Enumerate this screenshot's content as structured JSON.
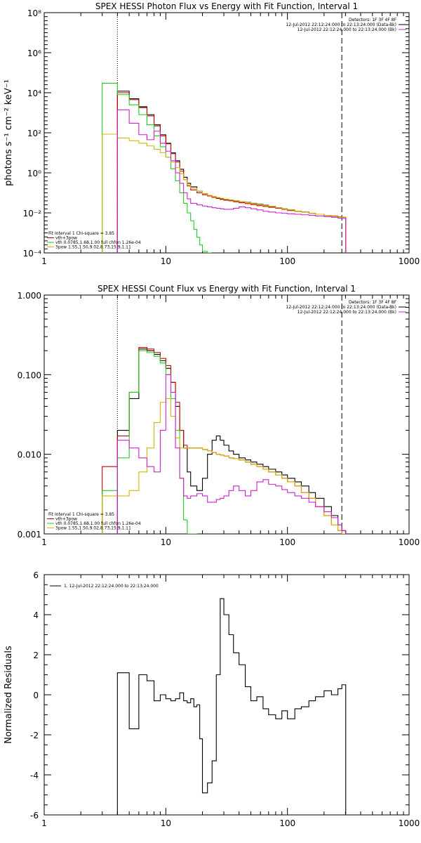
{
  "colors": {
    "black": "#000000",
    "red": "#cc0000",
    "green": "#22cc22",
    "yellow": "#d4b800",
    "magenta": "#cc22cc"
  },
  "chart_data": [
    {
      "type": "line",
      "title": "SPEX HESSI Photon Flux vs Energy with Fit Function, Interval 1",
      "xlabel": "",
      "ylabel": "photons s⁻¹ cm⁻² keV⁻¹",
      "xlim": [
        1,
        1000
      ],
      "x_scale": "log",
      "ylim": [
        0.0001,
        100000000
      ],
      "y_scale": "log",
      "x_ticks": [
        "1",
        "10",
        "100",
        "1000"
      ],
      "y_ticks": [
        "10⁻⁴",
        "10⁻²",
        "10⁰",
        "10²",
        "10⁴",
        "10⁶",
        "10⁸"
      ],
      "vlines": [
        {
          "x": 4,
          "style": "dotted"
        },
        {
          "x": 280,
          "style": "dashed"
        }
      ],
      "legend_topright": [
        "Detectors: 1F 3F 4F 8F",
        "12-Jul-2012 22:12:24.000 to 22:13:24.000 (Data-Bk)",
        "12-Jul-2012 22:12:24.000 to 22:13:24.000 (Bk)"
      ],
      "legend_topright_colors": [
        "",
        "black",
        "magenta"
      ],
      "legend_bottomleft": [
        "Fit Interval 1   Chi-square = 3.85",
        "vth+3pow",
        "vth 0.0785,1.68,1.00  full chfon 1.26e-04",
        "3pow 1.55,1.50,9.02,8.73,15.9,1.11"
      ],
      "legend_bottomleft_colors": [
        "",
        "red",
        "green",
        "yellow"
      ],
      "series": [
        {
          "color": "black",
          "x": [
            4,
            5,
            6,
            7,
            8,
            9,
            10,
            11,
            12,
            13,
            14,
            15,
            16,
            18,
            20,
            22,
            24,
            26,
            28,
            30,
            33,
            36,
            40,
            45,
            50,
            56,
            63,
            70,
            80,
            90,
            100,
            115,
            130,
            150,
            170,
            200,
            230,
            260,
            280
          ],
          "y": [
            12000,
            5000,
            2000,
            800,
            250,
            80,
            30,
            10,
            4,
            1.5,
            0.6,
            0.3,
            0.2,
            0.12,
            0.09,
            0.07,
            0.06,
            0.055,
            0.05,
            0.047,
            0.044,
            0.04,
            0.036,
            0.033,
            0.03,
            0.027,
            0.024,
            0.021,
            0.018,
            0.016,
            0.014,
            0.012,
            0.011,
            0.0095,
            0.0085,
            0.0075,
            0.007,
            0.0063,
            0.006
          ]
        },
        {
          "color": "red",
          "x": [
            4,
            5,
            6,
            7,
            8,
            9,
            10,
            11,
            12,
            13,
            14,
            15,
            16,
            18,
            20,
            22,
            24,
            26,
            28,
            30,
            33,
            36,
            40,
            45,
            50,
            56,
            63,
            70,
            80,
            90,
            100,
            115,
            130,
            150,
            170,
            200,
            230,
            260,
            280
          ],
          "y": [
            10000,
            4500,
            1800,
            700,
            220,
            70,
            28,
            9,
            3.5,
            1.2,
            0.45,
            0.22,
            0.14,
            0.1,
            0.08,
            0.07,
            0.06,
            0.052,
            0.047,
            0.043,
            0.04,
            0.036,
            0.032,
            0.029,
            0.026,
            0.023,
            0.021,
            0.019,
            0.017,
            0.015,
            0.013,
            0.012,
            0.011,
            0.0095,
            0.0085,
            0.0075,
            0.0068,
            0.0062,
            0.006
          ]
        },
        {
          "color": "green",
          "x": [
            3,
            4,
            5,
            6,
            7,
            8,
            9,
            10,
            11,
            12,
            13,
            14,
            15,
            16,
            17,
            18,
            19,
            20,
            22
          ],
          "y": [
            30000,
            8000,
            2500,
            800,
            250,
            70,
            20,
            6,
            1.6,
            0.4,
            0.1,
            0.03,
            0.01,
            0.004,
            0.0015,
            0.0006,
            0.00025,
            0.00012,
            0.0001
          ]
        },
        {
          "color": "yellow",
          "x": [
            3,
            4,
            5,
            6,
            7,
            8,
            9,
            10,
            11,
            12,
            13,
            14,
            15,
            16,
            18,
            20,
            22,
            24,
            26,
            28,
            30,
            33,
            36,
            40,
            45,
            50,
            56,
            63,
            70,
            80,
            90,
            100,
            115,
            130,
            150,
            170,
            200,
            230,
            260,
            280
          ],
          "y": [
            85,
            55,
            40,
            30,
            22,
            15,
            10,
            6,
            3.5,
            1.8,
            0.9,
            0.45,
            0.25,
            0.17,
            0.12,
            0.09,
            0.075,
            0.065,
            0.058,
            0.053,
            0.048,
            0.044,
            0.04,
            0.036,
            0.032,
            0.029,
            0.026,
            0.023,
            0.021,
            0.018,
            0.016,
            0.014,
            0.012,
            0.011,
            0.0095,
            0.0085,
            0.0075,
            0.0068,
            0.0062,
            0.006
          ]
        },
        {
          "color": "magenta",
          "x": [
            4,
            5,
            6,
            7,
            8,
            9,
            10,
            11,
            12,
            13,
            14,
            15,
            16,
            18,
            20,
            22,
            24,
            26,
            28,
            30,
            33,
            36,
            40,
            45,
            50,
            56,
            63,
            70,
            80,
            90,
            100,
            115,
            130,
            150,
            170,
            200,
            230,
            260,
            280
          ],
          "y": [
            1400,
            300,
            80,
            45,
            120,
            30,
            12,
            4,
            1,
            0.3,
            0.1,
            0.05,
            0.03,
            0.025,
            0.022,
            0.02,
            0.018,
            0.017,
            0.016,
            0.015,
            0.015,
            0.017,
            0.02,
            0.018,
            0.016,
            0.014,
            0.012,
            0.011,
            0.01,
            0.0095,
            0.009,
            0.0085,
            0.008,
            0.0075,
            0.007,
            0.0065,
            0.006,
            0.0055,
            0.0053
          ]
        }
      ]
    },
    {
      "type": "line",
      "title": "SPEX HESSI Count Flux vs Energy with Fit Function, Interval 1",
      "xlabel": "",
      "ylabel": "",
      "xlim": [
        1,
        1000
      ],
      "x_scale": "log",
      "ylim": [
        0.001,
        1
      ],
      "y_scale": "log",
      "x_ticks": [
        "1",
        "10",
        "100",
        "1000"
      ],
      "y_ticks": [
        "0.001",
        "0.010",
        "0.100",
        "1.000"
      ],
      "vlines": [
        {
          "x": 4,
          "style": "dotted"
        },
        {
          "x": 280,
          "style": "dashed"
        }
      ],
      "legend_topright": [
        "Detectors: 1F 3F 4F 8F",
        "12-Jul-2012 22:12:24.000 to 22:13:24.000 (Data-Bk)",
        "12-Jul-2012 22:12:24.000 to 22:13:24.000 (Bk)"
      ],
      "legend_topright_colors": [
        "",
        "black",
        "magenta"
      ],
      "legend_bottomleft": [
        "Fit Interval 1   Chi-square = 3.85",
        "vth+3pow",
        "vth 0.0785,1.68,1.00  full chfon 1.26e-04",
        "3pow 1.55,1.50,9.02,8.73,15.9,1.11"
      ],
      "legend_bottomleft_colors": [
        "",
        "red",
        "green",
        "yellow"
      ],
      "series": [
        {
          "color": "black",
          "x": [
            4,
            5,
            6,
            7,
            8,
            9,
            10,
            11,
            12,
            13,
            14,
            15,
            16,
            18,
            20,
            22,
            24,
            26,
            28,
            30,
            33,
            36,
            40,
            45,
            50,
            56,
            63,
            70,
            80,
            90,
            100,
            115,
            130,
            150,
            170,
            200,
            230,
            260,
            280
          ],
          "y": [
            0.02,
            0.05,
            0.21,
            0.2,
            0.18,
            0.15,
            0.12,
            0.08,
            0.04,
            0.02,
            0.012,
            0.006,
            0.004,
            0.0035,
            0.005,
            0.01,
            0.015,
            0.017,
            0.015,
            0.013,
            0.011,
            0.01,
            0.009,
            0.0085,
            0.008,
            0.0075,
            0.007,
            0.0065,
            0.006,
            0.0055,
            0.005,
            0.0045,
            0.004,
            0.0033,
            0.0028,
            0.0022,
            0.0017,
            0.0013,
            0.0011
          ]
        },
        {
          "color": "red",
          "x": [
            3,
            4,
            5,
            6,
            7,
            8,
            9,
            10,
            11,
            12,
            13,
            14,
            15,
            16,
            18,
            20,
            22,
            24,
            26,
            28,
            30,
            33,
            36,
            40,
            45,
            50,
            56,
            63,
            70,
            80,
            90,
            100,
            115,
            130,
            150,
            170,
            200,
            230,
            260,
            280
          ],
          "y": [
            0.007,
            0.017,
            0.06,
            0.22,
            0.21,
            0.19,
            0.16,
            0.13,
            0.08,
            0.045,
            0.02,
            0.013,
            0.012,
            0.012,
            0.012,
            0.0115,
            0.011,
            0.0105,
            0.01,
            0.0098,
            0.0095,
            0.009,
            0.0088,
            0.0085,
            0.008,
            0.0075,
            0.007,
            0.0065,
            0.006,
            0.0055,
            0.005,
            0.0045,
            0.004,
            0.0033,
            0.0028,
            0.0022,
            0.0017,
            0.0013,
            0.0011,
            0.001
          ]
        },
        {
          "color": "green",
          "x": [
            3,
            4,
            5,
            6,
            7,
            8,
            9,
            10,
            11,
            12,
            13,
            14,
            15,
            16,
            17
          ],
          "y": [
            0.0035,
            0.009,
            0.06,
            0.2,
            0.19,
            0.17,
            0.14,
            0.1,
            0.05,
            0.02,
            0.005,
            0.0015,
            0.001,
            0.001,
            0.001
          ]
        },
        {
          "color": "yellow",
          "x": [
            3,
            4,
            5,
            6,
            7,
            8,
            9,
            10,
            11,
            12,
            13,
            14,
            15,
            16,
            18,
            20,
            22,
            24,
            26,
            28,
            30,
            33,
            36,
            40,
            45,
            50,
            56,
            63,
            70,
            80,
            90,
            100,
            115,
            130,
            150,
            170,
            200,
            230,
            260,
            280
          ],
          "y": [
            0.003,
            0.003,
            0.0035,
            0.006,
            0.012,
            0.025,
            0.045,
            0.05,
            0.03,
            0.016,
            0.012,
            0.012,
            0.012,
            0.012,
            0.012,
            0.0115,
            0.011,
            0.0105,
            0.01,
            0.0098,
            0.0095,
            0.009,
            0.0088,
            0.0085,
            0.008,
            0.0075,
            0.007,
            0.0065,
            0.006,
            0.0055,
            0.005,
            0.0045,
            0.004,
            0.0033,
            0.0028,
            0.0022,
            0.0017,
            0.0013,
            0.0011,
            0.001
          ]
        },
        {
          "color": "magenta",
          "x": [
            4,
            5,
            6,
            7,
            8,
            9,
            10,
            11,
            12,
            13,
            14,
            15,
            16,
            18,
            20,
            22,
            24,
            26,
            28,
            30,
            33,
            36,
            40,
            45,
            50,
            56,
            63,
            70,
            80,
            90,
            100,
            115,
            130,
            150,
            170,
            200,
            230,
            260,
            280
          ],
          "y": [
            0.015,
            0.012,
            0.009,
            0.007,
            0.006,
            0.02,
            0.1,
            0.06,
            0.012,
            0.005,
            0.003,
            0.0028,
            0.003,
            0.0032,
            0.003,
            0.0025,
            0.0025,
            0.0027,
            0.0028,
            0.003,
            0.0035,
            0.004,
            0.0035,
            0.003,
            0.0035,
            0.0045,
            0.0048,
            0.0042,
            0.004,
            0.0036,
            0.0033,
            0.003,
            0.0028,
            0.0025,
            0.0022,
            0.0019,
            0.0016,
            0.0013,
            0.0011
          ]
        }
      ]
    },
    {
      "type": "line",
      "title": "",
      "xlabel": "",
      "ylabel": "Normalized Residuals",
      "xlim": [
        1,
        1000
      ],
      "x_scale": "log",
      "ylim": [
        -6,
        6
      ],
      "x_ticks": [
        "1",
        "10",
        "100",
        "1000"
      ],
      "y_ticks": [
        "-6",
        "-4",
        "-2",
        "0",
        "2",
        "4",
        "6"
      ],
      "legend": [
        "1. 12-Jul-2012 22:12:24.000 to 22:13:24.000"
      ],
      "series": [
        {
          "color": "black",
          "x": [
            4,
            5,
            6,
            7,
            8,
            9,
            10,
            11,
            12,
            13,
            14,
            15,
            16,
            17,
            18,
            19,
            20,
            22,
            24,
            26,
            28,
            30,
            33,
            36,
            40,
            45,
            50,
            56,
            63,
            70,
            80,
            90,
            100,
            115,
            130,
            150,
            170,
            200,
            230,
            260,
            280
          ],
          "y": [
            1.1,
            -1.7,
            1,
            0.7,
            -0.3,
            0,
            -0.2,
            -0.3,
            -0.2,
            0.1,
            -0.3,
            -0.4,
            -0.2,
            -0.6,
            -0.5,
            -2.2,
            -4.9,
            -4.4,
            -3.3,
            1,
            4.8,
            4,
            3,
            2.1,
            1.5,
            0.4,
            -0.3,
            -0.1,
            -0.7,
            -1,
            -1.2,
            -0.8,
            -1.2,
            -0.7,
            -0.6,
            -0.3,
            -0.1,
            0.2,
            0,
            0.3,
            0.5
          ]
        }
      ]
    }
  ]
}
